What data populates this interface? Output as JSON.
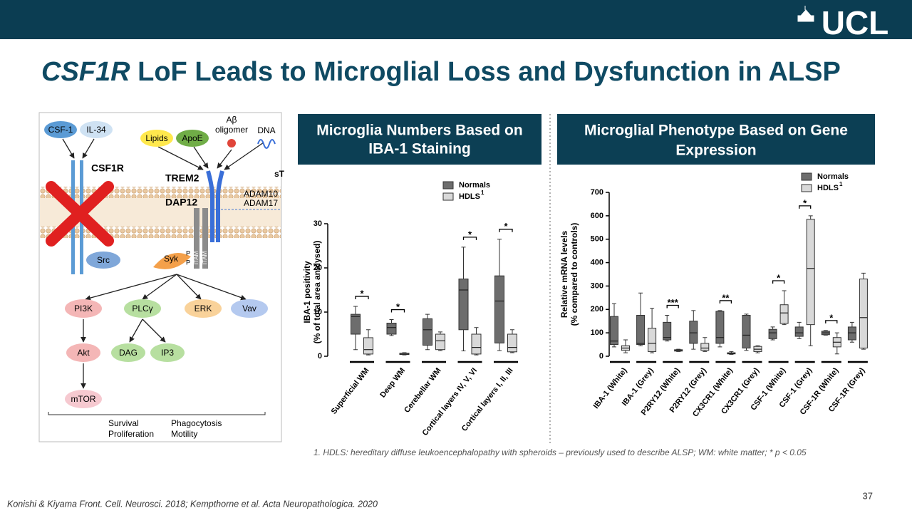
{
  "header": {
    "logo": "UCL"
  },
  "title": {
    "italic": "CSF1R",
    "rest": " LoF Leads to Microglial Loss and Dysfunction in ALSP"
  },
  "diagram": {
    "labels": [
      "CSF-1",
      "IL-34",
      "CSF1R",
      "Lipids",
      "ApoE",
      "Aβ",
      "oligomer",
      "DNA",
      "TREM2",
      "DAP12",
      "sT",
      "ADAM10",
      "ADAM17",
      "Src",
      "Syk",
      "PI3K",
      "PLCγ",
      "ERK",
      "Vav",
      "Akt",
      "DAG",
      "IP3",
      "mTOR",
      "Survival",
      "Proliferation",
      "Phagocytosis",
      "Motility",
      "P",
      "ITAM"
    ]
  },
  "chart_data": [
    {
      "type": "box",
      "title": [
        "Microglia Numbers Based on",
        "IBA-1 Staining"
      ],
      "ylabel": [
        "IBA-1 positivity",
        "(% of total area analysed)"
      ],
      "categories": [
        "Superficial WM",
        "Deep WM",
        "Cerebellar WM",
        "Cortical layers IV, V, VI",
        "Cortical layers I, II, III"
      ],
      "ylim": [
        0,
        30
      ],
      "yticks": [
        0,
        10,
        20,
        30
      ],
      "series": [
        {
          "name": "Normals",
          "color": "#6d6d6d",
          "min": [
            1.5,
            4.7,
            1.5,
            1.2,
            1.3
          ],
          "q1": [
            5,
            5,
            2.5,
            6,
            3
          ],
          "median": [
            9,
            6.5,
            6,
            15,
            12.5
          ],
          "q3": [
            9.5,
            7.5,
            8.5,
            17.5,
            18.2
          ],
          "max": [
            11.3,
            8.3,
            9.5,
            24.7,
            26.5
          ]
        },
        {
          "name": "HDLS",
          "name_superscript": "1",
          "color": "#d9d9d9",
          "min": [
            0.3,
            0.3,
            1.3,
            0.3,
            0.8
          ],
          "q1": [
            0.5,
            0.4,
            1.5,
            0.5,
            1
          ],
          "median": [
            1.5,
            0.5,
            3.5,
            2,
            2
          ],
          "q3": [
            4.2,
            0.7,
            5,
            5,
            5
          ],
          "max": [
            6,
            0.8,
            5.5,
            6.5,
            6
          ]
        }
      ],
      "significance": [
        "*",
        "*",
        null,
        "*",
        "*"
      ]
    },
    {
      "type": "box",
      "title": [
        "Microglial Phenotype Based on Gene",
        "Expression"
      ],
      "ylabel": [
        "Relative mRNA levels",
        "(% compared to controls)"
      ],
      "categories": [
        "IBA-1 (White)",
        "IBA-1 (Grey)",
        "P2RY12 (White)",
        "P2RY12 (Grey)",
        "CX3CR1 (White)",
        "CX3CR1 (Grey)",
        "CSF-1 (White)",
        "CSF-1 (Grey)",
        "CSF-1R (White)",
        "CSF-1R (Grey)"
      ],
      "ylim": [
        0,
        700
      ],
      "yticks": [
        0,
        100,
        200,
        300,
        400,
        500,
        600,
        700
      ],
      "series": [
        {
          "name": "Normals",
          "color": "#6d6d6d",
          "min": [
            40,
            45,
            65,
            30,
            40,
            25,
            70,
            75,
            90,
            60
          ],
          "q1": [
            50,
            50,
            70,
            55,
            55,
            35,
            75,
            85,
            92,
            70
          ],
          "median": [
            65,
            55,
            80,
            100,
            80,
            90,
            100,
            100,
            100,
            100
          ],
          "q3": [
            170,
            175,
            145,
            150,
            192,
            175,
            115,
            125,
            107,
            125
          ],
          "max": [
            225,
            270,
            175,
            195,
            195,
            180,
            125,
            145,
            110,
            145
          ]
        },
        {
          "name": "HDLS",
          "name_superscript": "1",
          "color": "#d9d9d9",
          "min": [
            15,
            15,
            20,
            20,
            8,
            15,
            135,
            45,
            10,
            30
          ],
          "q1": [
            25,
            20,
            22,
            25,
            10,
            20,
            140,
            135,
            40,
            35
          ],
          "median": [
            35,
            55,
            25,
            35,
            12,
            30,
            185,
            375,
            60,
            165
          ],
          "q3": [
            45,
            120,
            28,
            55,
            15,
            42,
            220,
            585,
            80,
            330
          ],
          "max": [
            70,
            205,
            30,
            80,
            20,
            45,
            280,
            600,
            100,
            355
          ]
        }
      ],
      "significance": [
        null,
        null,
        "***",
        null,
        "**",
        null,
        "*",
        "*",
        "*",
        null
      ]
    }
  ],
  "footnote": "1. HDLS: hereditary diffuse leukoencephalopathy with spheroids – previously used to describe ALSP; WM: white matter; * p < 0.05",
  "citation": "Konishi & Kiyama Front. Cell. Neurosci. 2018; Kempthorne et al. Acta Neuropathologica. 2020",
  "page_number": "37"
}
